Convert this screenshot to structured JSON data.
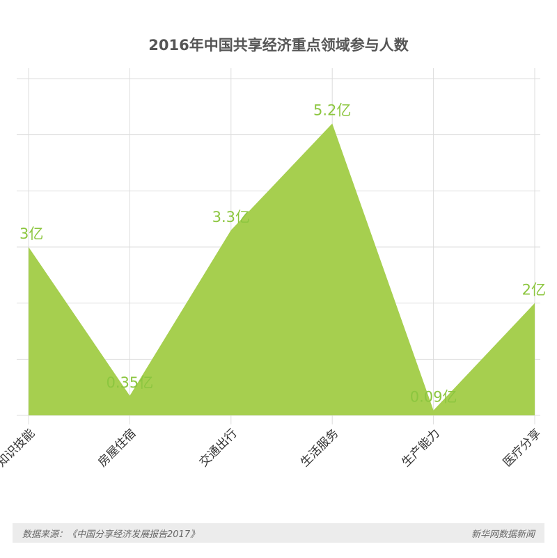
{
  "chart_data": {
    "type": "area",
    "title": "2016年中国共享经济重点领域参与人数",
    "categories": [
      "知识技能",
      "房屋住宿",
      "交通出行",
      "生活服务",
      "生产能力",
      "医疗分享"
    ],
    "values": [
      3,
      0.35,
      3.3,
      5.2,
      0.09,
      2
    ],
    "data_labels": [
      "3亿",
      "0.35亿",
      "3.3亿",
      "5.2亿",
      "0.09亿",
      "2亿"
    ],
    "unit": "亿",
    "ylim": [
      0,
      6
    ],
    "grid": true,
    "area_color": "#a6cf4f",
    "label_color": "#8cc63f"
  },
  "footer": {
    "source": "数据来源：《中国分享经济发展报告2017》",
    "brand": "新华网数据新闻"
  }
}
